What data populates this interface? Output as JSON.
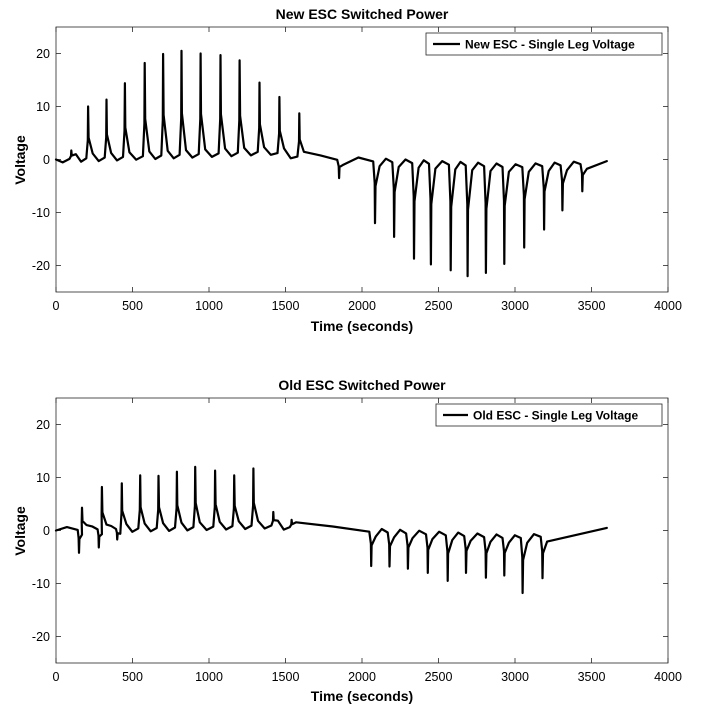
{
  "colors": {
    "series": "#000000",
    "axis": "#262626",
    "background": "#ffffff"
  },
  "chart_data": [
    {
      "type": "line",
      "title": "New ESC Switched Power",
      "xlabel": "Time (seconds)",
      "ylabel": "Voltage",
      "xlim": [
        0,
        4000
      ],
      "ylim": [
        -25,
        25
      ],
      "xticks": [
        0,
        500,
        1000,
        1500,
        2000,
        2500,
        3000,
        3500,
        4000
      ],
      "yticks": [
        -20,
        -10,
        0,
        10,
        20
      ],
      "grid": false,
      "legend": {
        "position": "top-right",
        "entries": [
          "New ESC - Single Leg Voltage"
        ]
      },
      "series": [
        {
          "name": "New ESC - Single Leg Voltage",
          "spike_times": [
            100,
            210,
            330,
            450,
            580,
            700,
            820,
            945,
            1075,
            1200,
            1330,
            1460,
            1590,
            1850,
            2085,
            2210,
            2340,
            2450,
            2580,
            2690,
            2810,
            2930,
            3060,
            3190,
            3310,
            3440
          ],
          "spike_peaks": [
            1.7,
            10,
            11.3,
            14.4,
            18.2,
            19.9,
            20.5,
            20.0,
            19.7,
            18.7,
            14.5,
            11.8,
            8.7,
            -3.5,
            -12,
            -14.6,
            -18.7,
            -19.8,
            -20.9,
            -22.0,
            -21.4,
            -19.7,
            -16.6,
            -13.2,
            -9.6,
            -6.0
          ],
          "baseline": [
            [
              0,
              0
            ],
            [
              1400,
              1.5
            ],
            [
              1600,
              0.5
            ],
            [
              1800,
              0
            ],
            [
              3000,
              -1.5
            ],
            [
              3400,
              -1
            ],
            [
              3600,
              -0.3
            ]
          ]
        }
      ]
    },
    {
      "type": "line",
      "title": "Old ESC Switched Power",
      "xlabel": "Time (seconds)",
      "ylabel": "Voltage",
      "xlim": [
        0,
        4000
      ],
      "ylim": [
        -25,
        25
      ],
      "xticks": [
        0,
        500,
        1000,
        1500,
        2000,
        2500,
        3000,
        3500,
        4000
      ],
      "yticks": [
        -20,
        -10,
        0,
        10,
        20
      ],
      "grid": false,
      "legend": {
        "position": "top-right",
        "entries": [
          "Old ESC - Single Leg Voltage"
        ]
      },
      "series": [
        {
          "name": "Old ESC - Single Leg Voltage",
          "spike_times": [
            170,
            300,
            430,
            550,
            670,
            790,
            910,
            1040,
            1165,
            1290,
            1420,
            1540,
            2060,
            2180,
            2300,
            2430,
            2560,
            2680,
            2810,
            2930,
            3050,
            3180
          ],
          "spike_peaks": [
            4.3,
            8.2,
            8.9,
            10.4,
            10.3,
            11.1,
            12.0,
            11.3,
            10.4,
            11.7,
            3.5,
            2.0,
            -6.7,
            -6.8,
            -7.2,
            -8.0,
            -9.5,
            -8.0,
            -8.9,
            -8.5,
            -11.8,
            -9.0
          ],
          "dip_times": [
            150,
            280,
            400
          ],
          "dip_values": [
            -4.2,
            -3.2,
            -1.7
          ],
          "baseline": [
            [
              0,
              0
            ],
            [
              1400,
              1
            ],
            [
              1600,
              0.5
            ],
            [
              1900,
              0
            ],
            [
              3000,
              -1.5
            ],
            [
              3400,
              -0.8
            ],
            [
              3600,
              0.5
            ]
          ]
        }
      ]
    }
  ]
}
